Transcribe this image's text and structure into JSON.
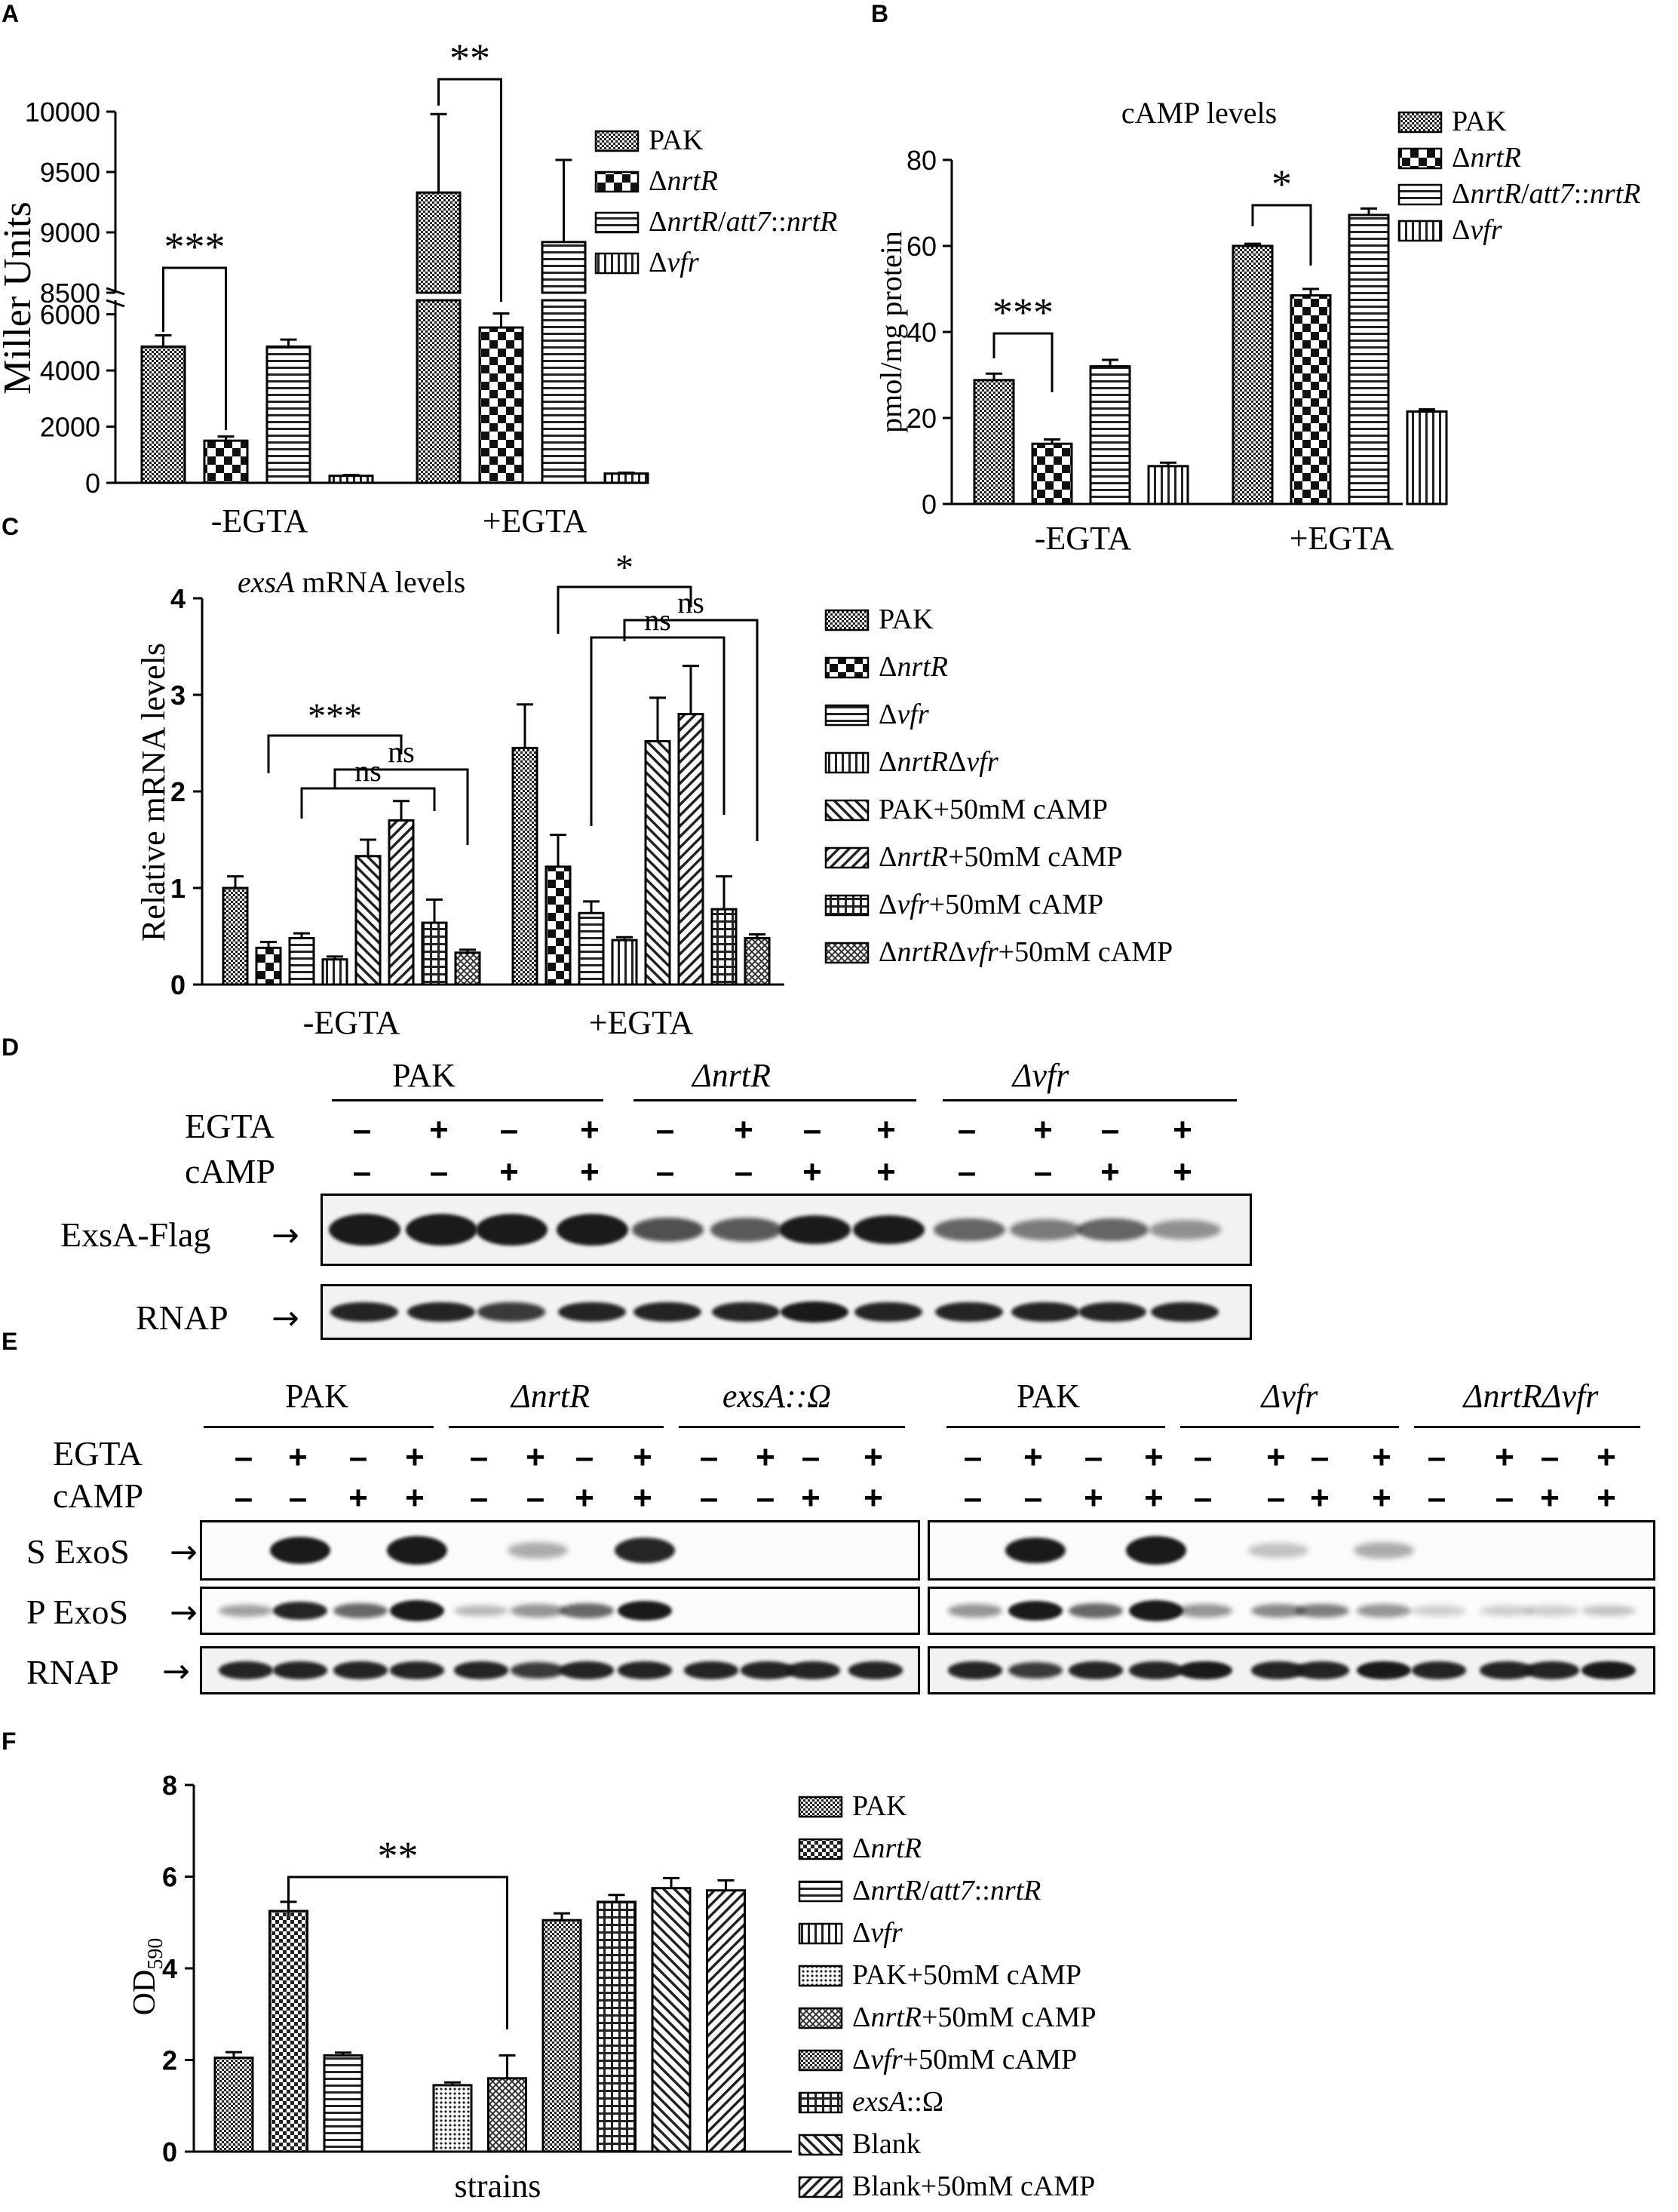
{
  "panels": {
    "A": "A",
    "B": "B",
    "C": "C",
    "D": "D",
    "E": "E",
    "F": "F"
  },
  "chart_data": [
    {
      "id": "A",
      "type": "bar",
      "ylabel": "Miller Units",
      "categories": [
        "-EGTA",
        "+EGTA"
      ],
      "yticks_lower": [
        "0",
        "2000",
        "4000",
        "6000"
      ],
      "yticks_upper": [
        "8500",
        "9000",
        "9500",
        "10000"
      ],
      "axis_break": [
        6500,
        8500
      ],
      "series": [
        {
          "name": "PAK",
          "values": [
            4850,
            9330
          ],
          "errors": [
            400,
            650
          ]
        },
        {
          "name": "ΔnrtR",
          "values": [
            1500,
            5530
          ],
          "errors": [
            150,
            500
          ]
        },
        {
          "name": "ΔnrtR/att7::nrtR",
          "values": [
            4850,
            8920
          ],
          "errors": [
            250,
            680
          ]
        },
        {
          "name": "Δvfr",
          "values": [
            250,
            330
          ],
          "errors": [
            30,
            30
          ]
        }
      ],
      "significance": [
        {
          "label": "***",
          "group": 0,
          "from": 0,
          "to": 1
        },
        {
          "label": "**",
          "group": 1,
          "from": 0,
          "to": 1
        }
      ]
    },
    {
      "id": "B",
      "type": "bar",
      "title": "cAMP levels",
      "ylabel": "pmol/mg protein",
      "categories": [
        "-EGTA",
        "+EGTA"
      ],
      "ylim": [
        0,
        80
      ],
      "yticks": [
        "0",
        "20",
        "40",
        "60",
        "80"
      ],
      "series": [
        {
          "name": "PAK",
          "values": [
            28.8,
            60.0
          ],
          "errors": [
            1.5,
            0.5
          ]
        },
        {
          "name": "ΔnrtR",
          "values": [
            14.0,
            48.5
          ],
          "errors": [
            1.0,
            1.5
          ]
        },
        {
          "name": "ΔnrtR/att7::nrtR",
          "values": [
            32.0,
            67.2
          ],
          "errors": [
            1.5,
            1.5
          ]
        },
        {
          "name": "Δvfr",
          "values": [
            8.8,
            21.5
          ],
          "errors": [
            0.8,
            0.5
          ]
        }
      ],
      "significance": [
        {
          "label": "***",
          "group": 0,
          "from": 0,
          "to": 1
        },
        {
          "label": "*",
          "group": 1,
          "from": 0,
          "to": 1
        }
      ]
    },
    {
      "id": "C",
      "type": "bar",
      "title_italic": "exsA",
      "title_rest": " mRNA levels",
      "ylabel": "Relative mRNA levels",
      "categories": [
        "-EGTA",
        "+EGTA"
      ],
      "ylim": [
        0,
        4
      ],
      "yticks": [
        "0",
        "1",
        "2",
        "3",
        "4"
      ],
      "series": [
        {
          "name": "PAK",
          "values": [
            1.0,
            2.45
          ],
          "errors": [
            0.12,
            0.45
          ]
        },
        {
          "name": "ΔnrtR",
          "values": [
            0.38,
            1.22
          ],
          "errors": [
            0.06,
            0.33
          ]
        },
        {
          "name": "Δvfr",
          "values": [
            0.48,
            0.74
          ],
          "errors": [
            0.05,
            0.12
          ]
        },
        {
          "name": "ΔnrtRΔvfr",
          "values": [
            0.26,
            0.46
          ],
          "errors": [
            0.03,
            0.03
          ]
        },
        {
          "name": "PAK+50mM cAMP",
          "values": [
            1.33,
            2.52
          ],
          "errors": [
            0.17,
            0.45
          ]
        },
        {
          "name": "ΔnrtR+50mM cAMP",
          "values": [
            1.7,
            2.8
          ],
          "errors": [
            0.2,
            0.5
          ]
        },
        {
          "name": "Δvfr+50mM cAMP",
          "values": [
            0.64,
            0.78
          ],
          "errors": [
            0.24,
            0.34
          ]
        },
        {
          "name": "ΔnrtRΔvfr+50mM cAMP",
          "values": [
            0.33,
            0.48
          ],
          "errors": [
            0.03,
            0.04
          ]
        }
      ],
      "significance": [
        {
          "label": "***",
          "group": 0
        },
        {
          "label": "ns",
          "group": 0
        },
        {
          "label": "ns",
          "group": 0
        },
        {
          "label": "*",
          "group": 1
        },
        {
          "label": "ns",
          "group": 1
        },
        {
          "label": "ns",
          "group": 1
        }
      ]
    },
    {
      "id": "F",
      "type": "bar",
      "ylabel": "OD590",
      "xlabel": "strains",
      "ylim": [
        0,
        8
      ],
      "yticks": [
        "0",
        "2",
        "4",
        "6",
        "8"
      ],
      "series": [
        {
          "name": "PAK",
          "value": 2.05,
          "error": 0.12
        },
        {
          "name": "ΔnrtR",
          "value": 5.25,
          "error": 0.2
        },
        {
          "name": "ΔnrtR/att7::nrtR",
          "value": 2.1,
          "error": 0.06
        },
        {
          "name": "Δvfr",
          "value": 0,
          "error": 0
        },
        {
          "name": "PAK+50mM cAMP",
          "value": 1.45,
          "error": 0.06
        },
        {
          "name": "ΔnrtR+50mM cAMP",
          "value": 1.6,
          "error": 0.5
        },
        {
          "name": "Δvfr+50mM cAMP",
          "value": 5.05,
          "error": 0.15
        },
        {
          "name": "exsA::Ω",
          "value": 5.45,
          "error": 0.15
        },
        {
          "name": "Blank",
          "value": 5.75,
          "error": 0.22
        },
        {
          "name": "Blank+50mM cAMP",
          "value": 5.7,
          "error": 0.22
        }
      ],
      "significance": [
        {
          "label": "**",
          "from": 1,
          "to": 5
        }
      ]
    }
  ],
  "legend_names": {
    "A": [
      "PAK",
      "ΔnrtR",
      "ΔnrtR/att7::nrtR",
      "Δvfr"
    ],
    "B": [
      "PAK",
      "ΔnrtR",
      "ΔnrtR/att7::nrtR",
      "Δvfr"
    ],
    "C": [
      "PAK",
      "ΔnrtR",
      "Δvfr",
      "ΔnrtRΔvfr",
      "PAK+50mM cAMP",
      "ΔnrtR+50mM cAMP",
      "Δvfr+50mM cAMP",
      "ΔnrtRΔvfr+50mM cAMP"
    ],
    "F": [
      "PAK",
      "ΔnrtR",
      "ΔnrtR/att7::nrtR",
      "Δvfr",
      "PAK+50mM cAMP",
      "ΔnrtR+50mM cAMP",
      "Δvfr+50mM cAMP",
      "exsA::Ω",
      "Blank",
      "Blank+50mM cAMP"
    ]
  },
  "blotD": {
    "groups": [
      "PAK",
      "ΔnrtR",
      "Δvfr"
    ],
    "egta_label": "EGTA",
    "camp_label": "cAMP",
    "egta": [
      "–",
      "+",
      "–",
      "+",
      "–",
      "+",
      "–",
      "+",
      "–",
      "+",
      "–",
      "+"
    ],
    "camp": [
      "–",
      "–",
      "+",
      "+",
      "–",
      "–",
      "+",
      "+",
      "–",
      "–",
      "+",
      "+"
    ],
    "row1_label": "ExsA-Flag",
    "row2_label": "RNAP",
    "arrow": "→",
    "exsa_intensity": [
      1.0,
      1.0,
      1.0,
      1.0,
      0.6,
      0.55,
      0.85,
      0.85,
      0.5,
      0.4,
      0.5,
      0.3
    ],
    "rnap_intensity": [
      0.8,
      0.8,
      0.7,
      0.8,
      0.8,
      0.8,
      0.9,
      0.8,
      0.8,
      0.8,
      0.8,
      0.8
    ]
  },
  "blotE": {
    "groups_left": [
      "PAK",
      "ΔnrtR",
      "exsA::Ω"
    ],
    "groups_right": [
      "PAK",
      "Δvfr",
      "ΔnrtRΔvfr"
    ],
    "egta_label": "EGTA",
    "camp_label": "cAMP",
    "egta": [
      "–",
      "+",
      "–",
      "+",
      "–",
      "+",
      "–",
      "+",
      "–",
      "+",
      "–",
      "+"
    ],
    "camp": [
      "–",
      "–",
      "+",
      "+",
      "–",
      "–",
      "+",
      "+",
      "–",
      "–",
      "+",
      "+"
    ],
    "s_label": "S  ExoS",
    "p_label": "P  ExoS",
    "rnap_label": "RNAP",
    "arrow": "→",
    "s_left": [
      0,
      0.9,
      0,
      1.0,
      0,
      0.2,
      0,
      0.8,
      0,
      0,
      0,
      0
    ],
    "p_left": [
      0.25,
      0.8,
      0.5,
      1.0,
      0.15,
      0.3,
      0.5,
      0.9,
      0,
      0,
      0,
      0
    ],
    "r_left": [
      0.8,
      0.8,
      0.8,
      0.8,
      0.8,
      0.7,
      0.8,
      0.8,
      0.8,
      0.8,
      0.8,
      0.8
    ],
    "s_right": [
      0,
      0.85,
      0,
      1.0,
      0,
      0.1,
      0,
      0.2,
      0,
      0,
      0,
      0
    ],
    "p_right": [
      0.3,
      0.9,
      0.5,
      1.0,
      0.3,
      0.35,
      0.4,
      0.3,
      0.05,
      0.05,
      0.05,
      0.1
    ],
    "r_right": [
      0.8,
      0.7,
      0.8,
      0.8,
      0.9,
      0.8,
      0.8,
      0.9,
      0.8,
      0.8,
      0.8,
      0.9
    ]
  }
}
